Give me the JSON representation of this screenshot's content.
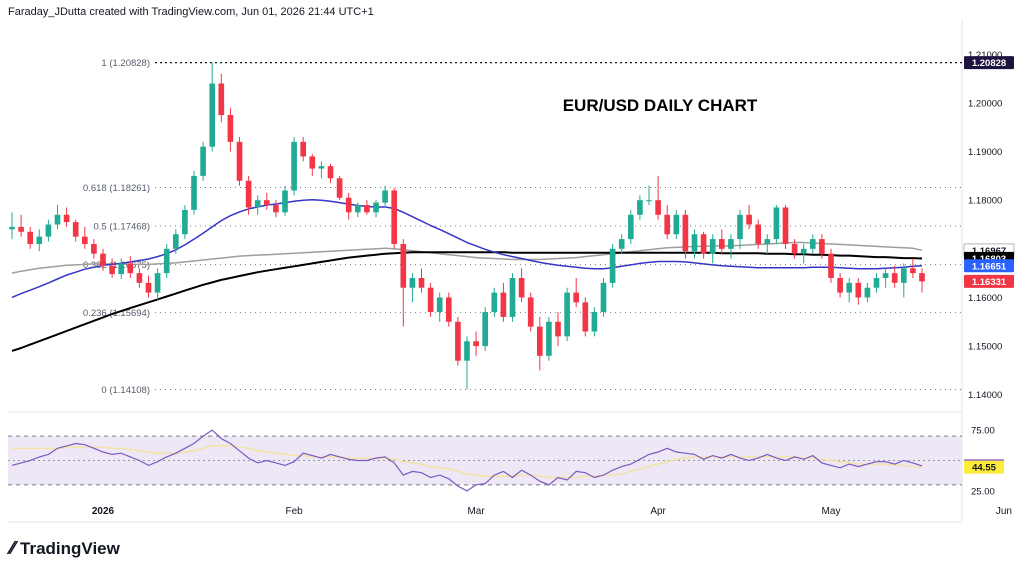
{
  "header": {
    "credit": "Faraday_JDutta created with TradingView.com, Jun 01, 2026 21:44 UTC+1"
  },
  "brand": {
    "name": "TradingView",
    "logo_icon": "tradingview-logo-icon"
  },
  "chart_data": [
    {
      "type": "candlestick",
      "title": "EUR/USD DAILY CHART",
      "ylim": [
        1.1385,
        1.2115
      ],
      "y_ticks": [
        "1.21000",
        "1.20000",
        "1.19000",
        "1.18000",
        "1.17000",
        "1.16000",
        "1.15000",
        "1.14000"
      ],
      "x_ticks": [
        {
          "label": "2026",
          "index": 10,
          "bold": true
        },
        {
          "label": "Feb",
          "index": 31,
          "bold": false
        },
        {
          "label": "Mar",
          "index": 51,
          "bold": false
        },
        {
          "label": "Apr",
          "index": 71,
          "bold": false
        },
        {
          "label": "May",
          "index": 90,
          "bold": false
        },
        {
          "label": "Jun",
          "index": 109,
          "bold": false
        }
      ],
      "fib_levels": [
        {
          "label": "1 (1.20828)",
          "value": 1.20828,
          "style": "dense"
        },
        {
          "label": "0.618 (1.18261)",
          "value": 1.18261,
          "style": "sparse"
        },
        {
          "label": "0.5 (1.17468)",
          "value": 1.17468,
          "style": "sparse"
        },
        {
          "label": "0.382 (1.16675)",
          "value": 1.16675,
          "style": "sparse"
        },
        {
          "label": "0.236 (1.15694)",
          "value": 1.15694,
          "style": "sparse"
        },
        {
          "label": "0 (1.14108)",
          "value": 1.14108,
          "style": "sparse"
        }
      ],
      "price_badges": [
        {
          "text": "1.20828",
          "value": 1.20828,
          "bg": "#1e1340",
          "fg": "#ffffff"
        },
        {
          "text": "1.16967",
          "value": 1.16967,
          "bg": "#ffffff",
          "fg": "#131722",
          "border": "#b2b5be"
        },
        {
          "text": "1.16803",
          "value": 1.16803,
          "bg": "#000000",
          "fg": "#ffffff"
        },
        {
          "text": "1.16651",
          "value": 1.16651,
          "bg": "#2962ff",
          "fg": "#ffffff"
        },
        {
          "text": "1.16331",
          "value": 1.16331,
          "bg": "#f23645",
          "fg": "#ffffff"
        }
      ],
      "colors": {
        "up": "#22ab94",
        "down": "#f23645",
        "ma_blue": "#3535c8",
        "ma_gray": "#9e9e9e",
        "ma_black": "#000000"
      },
      "candles": [
        [
          1.174,
          1.1775,
          1.172,
          1.1745
        ],
        [
          1.1745,
          1.177,
          1.1725,
          1.1735
        ],
        [
          1.1735,
          1.1745,
          1.17,
          1.171
        ],
        [
          1.171,
          1.174,
          1.1695,
          1.1725
        ],
        [
          1.1725,
          1.176,
          1.1715,
          1.175
        ],
        [
          1.175,
          1.179,
          1.174,
          1.177
        ],
        [
          1.177,
          1.1785,
          1.1745,
          1.1755
        ],
        [
          1.1755,
          1.176,
          1.1715,
          1.1725
        ],
        [
          1.1725,
          1.1745,
          1.17,
          1.171
        ],
        [
          1.171,
          1.172,
          1.168,
          1.169
        ],
        [
          1.169,
          1.17,
          1.1655,
          1.1665
        ],
        [
          1.1665,
          1.168,
          1.164,
          1.1648
        ],
        [
          1.1648,
          1.168,
          1.1638,
          1.167
        ],
        [
          1.167,
          1.1685,
          1.164,
          1.165
        ],
        [
          1.165,
          1.166,
          1.162,
          1.163
        ],
        [
          1.163,
          1.1645,
          1.16,
          1.161
        ],
        [
          1.161,
          1.166,
          1.1595,
          1.165
        ],
        [
          1.165,
          1.171,
          1.164,
          1.17
        ],
        [
          1.17,
          1.174,
          1.169,
          1.173
        ],
        [
          1.173,
          1.179,
          1.172,
          1.178
        ],
        [
          1.178,
          1.186,
          1.177,
          1.185
        ],
        [
          1.185,
          1.192,
          1.184,
          1.191
        ],
        [
          1.191,
          1.2083,
          1.19,
          1.204
        ],
        [
          1.204,
          1.206,
          1.196,
          1.1975
        ],
        [
          1.1975,
          1.199,
          1.19,
          1.192
        ],
        [
          1.192,
          1.193,
          1.183,
          1.184
        ],
        [
          1.184,
          1.185,
          1.177,
          1.1785
        ],
        [
          1.1785,
          1.181,
          1.177,
          1.18
        ],
        [
          1.18,
          1.1815,
          1.178,
          1.179
        ],
        [
          1.179,
          1.18,
          1.1765,
          1.1775
        ],
        [
          1.1775,
          1.183,
          1.1768,
          1.182
        ],
        [
          1.182,
          1.193,
          1.181,
          1.192
        ],
        [
          1.192,
          1.193,
          1.188,
          1.189
        ],
        [
          1.189,
          1.1895,
          1.185,
          1.1865
        ],
        [
          1.1865,
          1.188,
          1.1845,
          1.187
        ],
        [
          1.187,
          1.1875,
          1.1835,
          1.1845
        ],
        [
          1.1845,
          1.185,
          1.18,
          1.1805
        ],
        [
          1.1805,
          1.1815,
          1.176,
          1.1775
        ],
        [
          1.1775,
          1.1795,
          1.1765,
          1.179
        ],
        [
          1.179,
          1.18,
          1.177,
          1.1775
        ],
        [
          1.1775,
          1.18,
          1.1765,
          1.1795
        ],
        [
          1.1795,
          1.183,
          1.1785,
          1.182
        ],
        [
          1.182,
          1.1825,
          1.17,
          1.171
        ],
        [
          1.171,
          1.172,
          1.154,
          1.162
        ],
        [
          1.162,
          1.165,
          1.159,
          1.164
        ],
        [
          1.164,
          1.166,
          1.161,
          1.162
        ],
        [
          1.162,
          1.163,
          1.156,
          1.157
        ],
        [
          1.157,
          1.161,
          1.155,
          1.16
        ],
        [
          1.16,
          1.161,
          1.154,
          1.155
        ],
        [
          1.155,
          1.156,
          1.146,
          1.147
        ],
        [
          1.147,
          1.152,
          1.1411,
          1.151
        ],
        [
          1.151,
          1.153,
          1.148,
          1.15
        ],
        [
          1.15,
          1.158,
          1.149,
          1.157
        ],
        [
          1.157,
          1.162,
          1.156,
          1.161
        ],
        [
          1.161,
          1.163,
          1.155,
          1.156
        ],
        [
          1.156,
          1.165,
          1.155,
          1.164
        ],
        [
          1.164,
          1.166,
          1.159,
          1.16
        ],
        [
          1.16,
          1.161,
          1.153,
          1.154
        ],
        [
          1.154,
          1.156,
          1.145,
          1.148
        ],
        [
          1.148,
          1.156,
          1.147,
          1.155
        ],
        [
          1.155,
          1.157,
          1.15,
          1.152
        ],
        [
          1.152,
          1.162,
          1.151,
          1.161
        ],
        [
          1.161,
          1.164,
          1.158,
          1.159
        ],
        [
          1.159,
          1.16,
          1.152,
          1.153
        ],
        [
          1.153,
          1.158,
          1.152,
          1.157
        ],
        [
          1.157,
          1.164,
          1.156,
          1.163
        ],
        [
          1.163,
          1.171,
          1.162,
          1.17
        ],
        [
          1.17,
          1.173,
          1.169,
          1.172
        ],
        [
          1.172,
          1.178,
          1.171,
          1.177
        ],
        [
          1.177,
          1.181,
          1.176,
          1.18
        ],
        [
          1.18,
          1.183,
          1.179,
          1.18
        ],
        [
          1.18,
          1.185,
          1.176,
          1.177
        ],
        [
          1.177,
          1.179,
          1.172,
          1.173
        ],
        [
          1.173,
          1.178,
          1.172,
          1.177
        ],
        [
          1.177,
          1.178,
          1.168,
          1.1695
        ],
        [
          1.1695,
          1.174,
          1.168,
          1.173
        ],
        [
          1.173,
          1.1735,
          1.168,
          1.169
        ],
        [
          1.169,
          1.173,
          1.167,
          1.172
        ],
        [
          1.172,
          1.174,
          1.169,
          1.17
        ],
        [
          1.17,
          1.173,
          1.168,
          1.172
        ],
        [
          1.172,
          1.178,
          1.17,
          1.177
        ],
        [
          1.177,
          1.179,
          1.174,
          1.175
        ],
        [
          1.175,
          1.176,
          1.17,
          1.171
        ],
        [
          1.171,
          1.173,
          1.169,
          1.172
        ],
        [
          1.172,
          1.179,
          1.171,
          1.1785
        ],
        [
          1.1785,
          1.179,
          1.17,
          1.171
        ],
        [
          1.171,
          1.172,
          1.168,
          1.169
        ],
        [
          1.169,
          1.171,
          1.167,
          1.17
        ],
        [
          1.17,
          1.173,
          1.169,
          1.172
        ],
        [
          1.172,
          1.173,
          1.168,
          1.169
        ],
        [
          1.169,
          1.17,
          1.163,
          1.164
        ],
        [
          1.164,
          1.165,
          1.16,
          1.161
        ],
        [
          1.161,
          1.164,
          1.159,
          1.163
        ],
        [
          1.163,
          1.164,
          1.1585,
          1.16
        ],
        [
          1.16,
          1.163,
          1.159,
          1.162
        ],
        [
          1.162,
          1.165,
          1.161,
          1.164
        ],
        [
          1.164,
          1.166,
          1.162,
          1.165
        ],
        [
          1.165,
          1.1665,
          1.162,
          1.163
        ],
        [
          1.163,
          1.167,
          1.16,
          1.166
        ],
        [
          1.166,
          1.168,
          1.164,
          1.165
        ],
        [
          1.165,
          1.166,
          1.161,
          1.1633
        ]
      ],
      "ma_blue": [
        1.16,
        1.1608,
        1.1615,
        1.1622,
        1.163,
        1.1638,
        1.1646,
        1.1652,
        1.1658,
        1.1662,
        1.1666,
        1.1668,
        1.167,
        1.1673,
        1.1676,
        1.1679,
        1.1684,
        1.169,
        1.1698,
        1.1708,
        1.172,
        1.1732,
        1.1745,
        1.1758,
        1.1768,
        1.1776,
        1.1782,
        1.1786,
        1.179,
        1.1792,
        1.1795,
        1.1798,
        1.18,
        1.1801,
        1.18,
        1.1798,
        1.1795,
        1.1792,
        1.1789,
        1.1787,
        1.1786,
        1.1786,
        1.1783,
        1.1775,
        1.1766,
        1.1757,
        1.1748,
        1.174,
        1.1731,
        1.1722,
        1.1713,
        1.1706,
        1.1699,
        1.1693,
        1.1688,
        1.1684,
        1.168,
        1.1676,
        1.1672,
        1.1669,
        1.1666,
        1.1664,
        1.1662,
        1.166,
        1.1659,
        1.1659,
        1.1661,
        1.1664,
        1.1667,
        1.167,
        1.1672,
        1.1674,
        1.1674,
        1.1674,
        1.1673,
        1.1671,
        1.1669,
        1.1667,
        1.1665,
        1.1664,
        1.1663,
        1.1662,
        1.1661,
        1.1661,
        1.1661,
        1.1661,
        1.1661,
        1.1661,
        1.1662,
        1.1662,
        1.1662,
        1.1661,
        1.166,
        1.1659,
        1.1659,
        1.1659,
        1.166,
        1.1661,
        1.1662,
        1.1664,
        1.1665
      ],
      "ma_gray": [
        1.165,
        1.1654,
        1.1657,
        1.166,
        1.1662,
        1.1664,
        1.1666,
        1.1667,
        1.1668,
        1.1669,
        1.1669,
        1.1669,
        1.1669,
        1.1668,
        1.1668,
        1.1668,
        1.1669,
        1.167,
        1.1671,
        1.1673,
        1.1675,
        1.1677,
        1.1679,
        1.1681,
        1.1683,
        1.1685,
        1.1686,
        1.1687,
        1.1688,
        1.1689,
        1.169,
        1.1691,
        1.1692,
        1.1693,
        1.1694,
        1.1695,
        1.1696,
        1.1697,
        1.1698,
        1.1699,
        1.17,
        1.1701,
        1.17,
        1.1698,
        1.1696,
        1.1694,
        1.1692,
        1.169,
        1.1688,
        1.1686,
        1.1684,
        1.1682,
        1.1681,
        1.168,
        1.1679,
        1.1678,
        1.1678,
        1.1678,
        1.1678,
        1.1679,
        1.168,
        1.1681,
        1.1682,
        1.1684,
        1.1686,
        1.1688,
        1.169,
        1.1692,
        1.1694,
        1.1696,
        1.1698,
        1.17,
        1.1702,
        1.1703,
        1.1704,
        1.1705,
        1.1705,
        1.1706,
        1.1706,
        1.1706,
        1.1707,
        1.1708,
        1.1709,
        1.171,
        1.1711,
        1.1712,
        1.1713,
        1.1713,
        1.1712,
        1.1711,
        1.171,
        1.1709,
        1.1708,
        1.1707,
        1.1706,
        1.1705,
        1.1704,
        1.1703,
        1.1702,
        1.1701,
        1.1697
      ],
      "ma_black": [
        1.149,
        1.1496,
        1.1503,
        1.151,
        1.1517,
        1.1524,
        1.1531,
        1.1538,
        1.1545,
        1.1552,
        1.1559,
        1.1566,
        1.1572,
        1.1578,
        1.1584,
        1.159,
        1.1596,
        1.1602,
        1.1608,
        1.1614,
        1.162,
        1.1626,
        1.1631,
        1.1636,
        1.164,
        1.1644,
        1.1648,
        1.1652,
        1.1655,
        1.1658,
        1.1661,
        1.1664,
        1.1667,
        1.167,
        1.1673,
        1.1676,
        1.1679,
        1.1682,
        1.1684,
        1.1686,
        1.1688,
        1.169,
        1.1691,
        1.1692,
        1.1693,
        1.1693,
        1.1693,
        1.1693,
        1.1693,
        1.1693,
        1.1693,
        1.1693,
        1.1693,
        1.1693,
        1.1693,
        1.1692,
        1.1692,
        1.1692,
        1.1692,
        1.1692,
        1.1692,
        1.1692,
        1.1692,
        1.1692,
        1.1692,
        1.1692,
        1.1692,
        1.1692,
        1.1692,
        1.1692,
        1.1692,
        1.1692,
        1.1692,
        1.1692,
        1.1692,
        1.1692,
        1.1692,
        1.1692,
        1.1691,
        1.1691,
        1.1691,
        1.1691,
        1.1691,
        1.169,
        1.169,
        1.169,
        1.1689,
        1.1689,
        1.1688,
        1.1688,
        1.1687,
        1.1686,
        1.1686,
        1.1685,
        1.1684,
        1.1683,
        1.1683,
        1.1682,
        1.1681,
        1.1681,
        1.168
      ]
    },
    {
      "type": "line",
      "ylim": [
        20,
        80
      ],
      "y_ticks": [
        "75.00",
        "25.00"
      ],
      "band": [
        30,
        70
      ],
      "midline": 50,
      "badges": [
        {
          "text": "45.56",
          "value": 45.56,
          "bg": "#7e57c2",
          "fg": "#ffffff"
        },
        {
          "text": "44.55",
          "value": 44.55,
          "bg": "#ffeb3b",
          "fg": "#131722"
        }
      ],
      "colors": {
        "rsi": "#7e57c2",
        "signal": "#f2e49a",
        "band_fill": "#ede7f6"
      },
      "rsi": [
        46,
        48,
        50,
        53,
        55,
        60,
        62,
        64,
        63,
        60,
        57,
        55,
        56,
        53,
        50,
        46,
        49,
        53,
        56,
        60,
        64,
        70,
        75,
        68,
        64,
        58,
        52,
        48,
        50,
        48,
        46,
        49,
        56,
        54,
        52,
        55,
        53,
        51,
        50,
        50,
        52,
        53,
        48,
        38,
        41,
        40,
        36,
        38,
        35,
        29,
        25,
        30,
        31,
        38,
        41,
        36,
        42,
        38,
        33,
        30,
        36,
        34,
        41,
        40,
        36,
        38,
        42,
        45,
        47,
        51,
        55,
        57,
        60,
        57,
        56,
        55,
        51,
        54,
        52,
        55,
        52,
        50,
        52,
        55,
        52,
        50,
        53,
        51,
        54,
        48,
        46,
        44,
        47,
        45,
        47,
        49,
        49,
        47,
        50,
        48,
        45.56
      ],
      "signal": [
        60,
        60,
        60,
        60,
        60,
        60,
        61,
        61,
        61,
        61,
        61,
        60,
        60,
        59,
        58,
        57,
        56,
        56,
        56,
        57,
        58,
        60,
        62,
        62,
        62,
        61,
        60,
        58,
        57,
        56,
        55,
        54,
        54,
        53,
        53,
        53,
        53,
        52,
        52,
        52,
        52,
        52,
        51,
        49,
        48,
        47,
        45,
        44,
        43,
        41,
        39,
        38,
        37,
        37,
        37,
        37,
        38,
        38,
        37,
        36,
        36,
        36,
        36,
        37,
        37,
        38,
        38,
        39,
        41,
        43,
        45,
        47,
        49,
        51,
        52,
        53,
        53,
        53,
        53,
        53,
        53,
        53,
        53,
        53,
        53,
        53,
        53,
        52,
        52,
        51,
        50,
        49,
        48,
        47,
        47,
        47,
        47,
        46,
        46,
        45,
        44.55
      ]
    }
  ]
}
